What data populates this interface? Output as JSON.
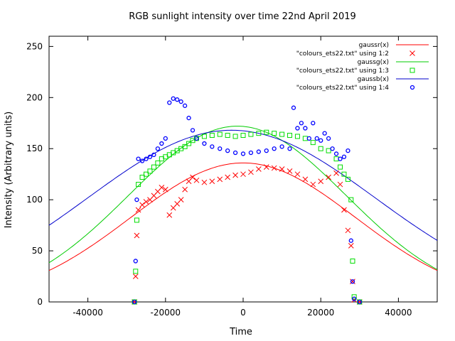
{
  "chart_data": {
    "type": "scatter",
    "title": "RGB sunlight intensity over time 22nd April 2019",
    "xlabel": "Time",
    "ylabel": "Intensity (Arbitrary units)",
    "xlim": [
      -50000,
      50000
    ],
    "ylim": [
      0,
      260
    ],
    "xticks": [
      -40000,
      -20000,
      0,
      20000,
      40000
    ],
    "yticks": [
      0,
      50,
      100,
      150,
      200,
      250
    ],
    "grid": false,
    "legend_position": "top-right",
    "curves": [
      {
        "name": "gaussr(x)",
        "color": "#ff0000",
        "amplitude": 136,
        "center": 0,
        "sigma": 29000
      },
      {
        "name": "gaussg(x)",
        "color": "#00cc00",
        "amplitude": 172,
        "center": -1500,
        "sigma": 28000
      },
      {
        "name": "gaussb(x)",
        "color": "#0000cc",
        "amplitude": 168,
        "center": -3000,
        "sigma": 37000
      }
    ],
    "series": [
      {
        "name": "\"colours_ets22.txt\" using 1:2",
        "color": "#ff0000",
        "marker": "x",
        "points": [
          [
            -28000,
            0
          ],
          [
            -27700,
            25
          ],
          [
            -27400,
            65
          ],
          [
            -27000,
            90
          ],
          [
            -26000,
            95
          ],
          [
            -25000,
            98
          ],
          [
            -24000,
            100
          ],
          [
            -23000,
            104
          ],
          [
            -22000,
            108
          ],
          [
            -21000,
            112
          ],
          [
            -20000,
            110
          ],
          [
            -19000,
            85
          ],
          [
            -18000,
            92
          ],
          [
            -17000,
            96
          ],
          [
            -16000,
            100
          ],
          [
            -15000,
            110
          ],
          [
            -14000,
            118
          ],
          [
            -13000,
            122
          ],
          [
            -12000,
            119
          ],
          [
            -10000,
            117
          ],
          [
            -8000,
            118
          ],
          [
            -6000,
            120
          ],
          [
            -4000,
            122
          ],
          [
            -2000,
            124
          ],
          [
            0,
            125
          ],
          [
            2000,
            127
          ],
          [
            4000,
            130
          ],
          [
            6000,
            132
          ],
          [
            8000,
            131
          ],
          [
            10000,
            130
          ],
          [
            12000,
            128
          ],
          [
            14000,
            125
          ],
          [
            16000,
            120
          ],
          [
            18000,
            115
          ],
          [
            20000,
            118
          ],
          [
            22000,
            122
          ],
          [
            24000,
            126
          ],
          [
            25000,
            115
          ],
          [
            26000,
            90
          ],
          [
            27000,
            70
          ],
          [
            27800,
            55
          ],
          [
            28200,
            20
          ],
          [
            28600,
            2
          ],
          [
            30000,
            0
          ]
        ]
      },
      {
        "name": "\"colours_ets22.txt\" using 1:3",
        "color": "#00dd00",
        "marker": "square",
        "points": [
          [
            -28000,
            0
          ],
          [
            -27700,
            30
          ],
          [
            -27400,
            80
          ],
          [
            -27000,
            115
          ],
          [
            -26000,
            122
          ],
          [
            -25000,
            125
          ],
          [
            -24000,
            128
          ],
          [
            -23000,
            132
          ],
          [
            -22000,
            136
          ],
          [
            -21000,
            140
          ],
          [
            -20000,
            142
          ],
          [
            -19000,
            144
          ],
          [
            -18000,
            146
          ],
          [
            -17000,
            148
          ],
          [
            -16000,
            150
          ],
          [
            -15000,
            152
          ],
          [
            -14000,
            155
          ],
          [
            -13000,
            158
          ],
          [
            -12000,
            160
          ],
          [
            -10000,
            162
          ],
          [
            -8000,
            163
          ],
          [
            -6000,
            164
          ],
          [
            -4000,
            163
          ],
          [
            -2000,
            162
          ],
          [
            0,
            163
          ],
          [
            2000,
            164
          ],
          [
            4000,
            165
          ],
          [
            6000,
            166
          ],
          [
            8000,
            165
          ],
          [
            10000,
            164
          ],
          [
            12000,
            163
          ],
          [
            14000,
            162
          ],
          [
            16000,
            160
          ],
          [
            18000,
            156
          ],
          [
            20000,
            150
          ],
          [
            22000,
            148
          ],
          [
            24000,
            140
          ],
          [
            25000,
            132
          ],
          [
            26000,
            125
          ],
          [
            27000,
            120
          ],
          [
            27800,
            100
          ],
          [
            28200,
            40
          ],
          [
            28600,
            5
          ],
          [
            30000,
            0
          ]
        ]
      },
      {
        "name": "\"colours_ets22.txt\" using 1:4",
        "color": "#0000ff",
        "marker": "circle",
        "points": [
          [
            -28000,
            0
          ],
          [
            -27700,
            40
          ],
          [
            -27400,
            100
          ],
          [
            -27000,
            140
          ],
          [
            -26000,
            138
          ],
          [
            -25000,
            140
          ],
          [
            -24000,
            142
          ],
          [
            -23000,
            144
          ],
          [
            -22000,
            150
          ],
          [
            -21000,
            155
          ],
          [
            -20000,
            160
          ],
          [
            -19000,
            195
          ],
          [
            -18000,
            199
          ],
          [
            -17000,
            198
          ],
          [
            -16000,
            196
          ],
          [
            -15000,
            192
          ],
          [
            -14000,
            180
          ],
          [
            -13000,
            168
          ],
          [
            -12000,
            160
          ],
          [
            -10000,
            155
          ],
          [
            -8000,
            152
          ],
          [
            -6000,
            150
          ],
          [
            -4000,
            148
          ],
          [
            -2000,
            146
          ],
          [
            0,
            145
          ],
          [
            2000,
            146
          ],
          [
            4000,
            147
          ],
          [
            6000,
            148
          ],
          [
            8000,
            150
          ],
          [
            10000,
            152
          ],
          [
            12000,
            150
          ],
          [
            13000,
            190
          ],
          [
            14000,
            170
          ],
          [
            15000,
            175
          ],
          [
            16000,
            170
          ],
          [
            17000,
            160
          ],
          [
            18000,
            175
          ],
          [
            19000,
            160
          ],
          [
            20000,
            158
          ],
          [
            21000,
            165
          ],
          [
            22000,
            160
          ],
          [
            23000,
            150
          ],
          [
            24000,
            145
          ],
          [
            25000,
            140
          ],
          [
            26000,
            142
          ],
          [
            27000,
            148
          ],
          [
            27800,
            60
          ],
          [
            28200,
            20
          ],
          [
            28600,
            3
          ],
          [
            30000,
            0
          ]
        ]
      }
    ]
  }
}
